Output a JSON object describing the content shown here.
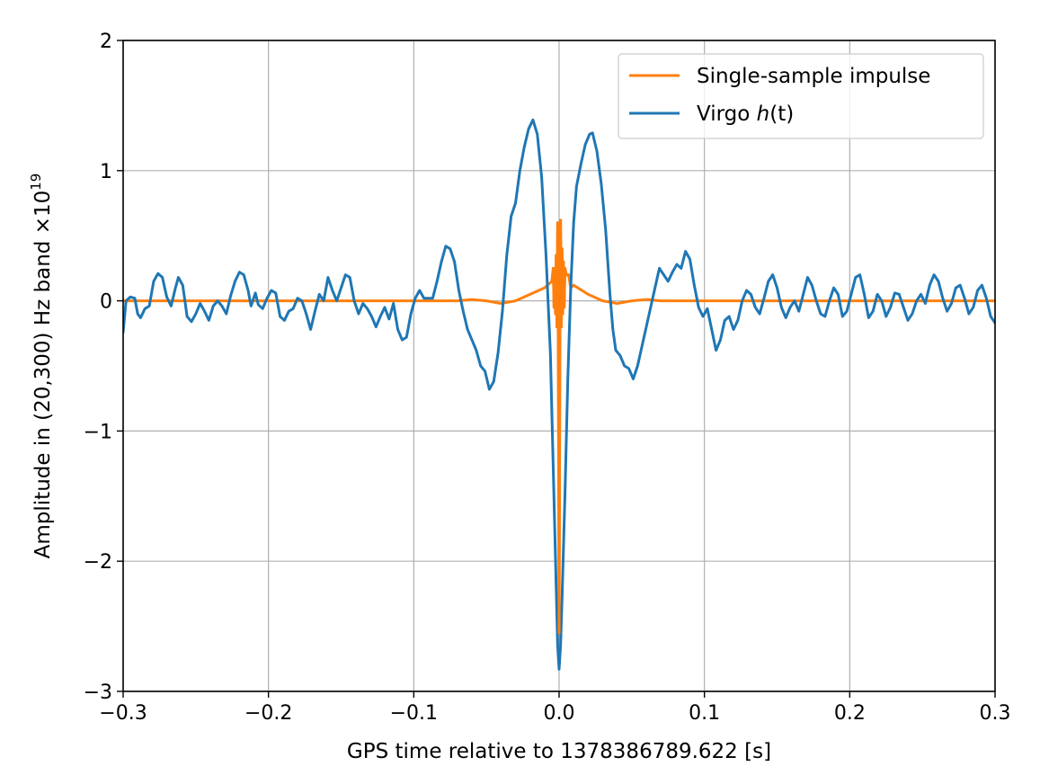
{
  "chart_data": {
    "type": "line",
    "xlabel": "GPS time relative to 1378386789.622 [s]",
    "ylabel": "Amplitude in (20,300) Hz band ×10",
    "ylabel_exponent": "19",
    "xlim": [
      -0.3,
      0.3
    ],
    "ylim": [
      -3,
      2
    ],
    "grid": true,
    "legend_position": "top-right",
    "x_ticks": [
      -0.3,
      -0.2,
      -0.1,
      0.0,
      0.1,
      0.2,
      0.3
    ],
    "x_tick_labels": [
      "−0.3",
      "−0.2",
      "−0.1",
      "0.0",
      "0.1",
      "0.2",
      "0.3"
    ],
    "y_ticks": [
      -3,
      -2,
      -1,
      0,
      1,
      2
    ],
    "y_tick_labels": [
      "−3",
      "−2",
      "−1",
      "0",
      "1",
      "2"
    ],
    "legend": [
      {
        "label": "Single-sample impulse",
        "italic_part": "",
        "suffix": "",
        "color": "#ff7f0e"
      },
      {
        "label": "Virgo ",
        "italic_part": "h",
        "suffix": "(t)",
        "color": "#1f77b4"
      }
    ],
    "series": [
      {
        "name": "Virgo h(t)",
        "color": "#1f77b4",
        "points": [
          [
            -0.3,
            -0.24
          ],
          [
            -0.298,
            0.0
          ],
          [
            -0.295,
            0.03
          ],
          [
            -0.292,
            0.02
          ],
          [
            -0.29,
            -0.1
          ],
          [
            -0.288,
            -0.13
          ],
          [
            -0.285,
            -0.06
          ],
          [
            -0.282,
            -0.04
          ],
          [
            -0.279,
            0.15
          ],
          [
            -0.276,
            0.21
          ],
          [
            -0.273,
            0.18
          ],
          [
            -0.27,
            0.03
          ],
          [
            -0.267,
            -0.04
          ],
          [
            -0.264,
            0.1
          ],
          [
            -0.262,
            0.18
          ],
          [
            -0.259,
            0.12
          ],
          [
            -0.256,
            -0.12
          ],
          [
            -0.253,
            -0.16
          ],
          [
            -0.25,
            -0.1
          ],
          [
            -0.247,
            -0.02
          ],
          [
            -0.244,
            -0.08
          ],
          [
            -0.241,
            -0.15
          ],
          [
            -0.238,
            -0.04
          ],
          [
            -0.235,
            0.0
          ],
          [
            -0.232,
            -0.04
          ],
          [
            -0.229,
            -0.1
          ],
          [
            -0.226,
            0.04
          ],
          [
            -0.223,
            0.15
          ],
          [
            -0.22,
            0.22
          ],
          [
            -0.217,
            0.2
          ],
          [
            -0.214,
            0.08
          ],
          [
            -0.212,
            -0.04
          ],
          [
            -0.209,
            0.06
          ],
          [
            -0.207,
            -0.03
          ],
          [
            -0.204,
            -0.06
          ],
          [
            -0.201,
            0.02
          ],
          [
            -0.198,
            0.08
          ],
          [
            -0.195,
            0.06
          ],
          [
            -0.192,
            -0.12
          ],
          [
            -0.189,
            -0.15
          ],
          [
            -0.186,
            -0.08
          ],
          [
            -0.183,
            -0.06
          ],
          [
            -0.18,
            0.02
          ],
          [
            -0.177,
            0.0
          ],
          [
            -0.174,
            -0.1
          ],
          [
            -0.171,
            -0.22
          ],
          [
            -0.168,
            -0.08
          ],
          [
            -0.165,
            0.05
          ],
          [
            -0.162,
            0.0
          ],
          [
            -0.159,
            0.18
          ],
          [
            -0.156,
            0.08
          ],
          [
            -0.153,
            0.0
          ],
          [
            -0.15,
            0.1
          ],
          [
            -0.147,
            0.2
          ],
          [
            -0.144,
            0.18
          ],
          [
            -0.141,
            0.0
          ],
          [
            -0.138,
            -0.1
          ],
          [
            -0.135,
            -0.02
          ],
          [
            -0.132,
            -0.06
          ],
          [
            -0.129,
            -0.12
          ],
          [
            -0.126,
            -0.2
          ],
          [
            -0.123,
            -0.12
          ],
          [
            -0.12,
            -0.05
          ],
          [
            -0.117,
            -0.14
          ],
          [
            -0.114,
            -0.02
          ],
          [
            -0.111,
            -0.22
          ],
          [
            -0.108,
            -0.3
          ],
          [
            -0.105,
            -0.28
          ],
          [
            -0.102,
            -0.1
          ],
          [
            -0.099,
            0.02
          ],
          [
            -0.096,
            0.08
          ],
          [
            -0.093,
            0.02
          ],
          [
            -0.09,
            0.02
          ],
          [
            -0.087,
            0.02
          ],
          [
            -0.084,
            0.15
          ],
          [
            -0.081,
            0.3
          ],
          [
            -0.078,
            0.42
          ],
          [
            -0.075,
            0.4
          ],
          [
            -0.072,
            0.3
          ],
          [
            -0.069,
            0.08
          ],
          [
            -0.066,
            -0.08
          ],
          [
            -0.063,
            -0.22
          ],
          [
            -0.06,
            -0.3
          ],
          [
            -0.057,
            -0.38
          ],
          [
            -0.054,
            -0.5
          ],
          [
            -0.051,
            -0.54
          ],
          [
            -0.048,
            -0.68
          ],
          [
            -0.045,
            -0.62
          ],
          [
            -0.042,
            -0.4
          ],
          [
            -0.039,
            -0.08
          ],
          [
            -0.036,
            0.35
          ],
          [
            -0.033,
            0.65
          ],
          [
            -0.03,
            0.75
          ],
          [
            -0.027,
            1.0
          ],
          [
            -0.024,
            1.18
          ],
          [
            -0.021,
            1.32
          ],
          [
            -0.018,
            1.39
          ],
          [
            -0.015,
            1.28
          ],
          [
            -0.012,
            0.95
          ],
          [
            -0.009,
            0.35
          ],
          [
            -0.006,
            -0.4
          ],
          [
            -0.004,
            -1.3
          ],
          [
            -0.002,
            -2.2
          ],
          [
            -0.001,
            -2.65
          ],
          [
            0.0,
            -2.83
          ],
          [
            0.001,
            -2.65
          ],
          [
            0.002,
            -2.3
          ],
          [
            0.004,
            -1.5
          ],
          [
            0.006,
            -0.6
          ],
          [
            0.008,
            0.1
          ],
          [
            0.01,
            0.6
          ],
          [
            0.012,
            0.88
          ],
          [
            0.015,
            1.05
          ],
          [
            0.018,
            1.2
          ],
          [
            0.021,
            1.28
          ],
          [
            0.023,
            1.29
          ],
          [
            0.026,
            1.15
          ],
          [
            0.029,
            0.9
          ],
          [
            0.032,
            0.55
          ],
          [
            0.035,
            0.05
          ],
          [
            0.037,
            -0.22
          ],
          [
            0.039,
            -0.38
          ],
          [
            0.042,
            -0.42
          ],
          [
            0.045,
            -0.5
          ],
          [
            0.048,
            -0.52
          ],
          [
            0.051,
            -0.6
          ],
          [
            0.054,
            -0.5
          ],
          [
            0.057,
            -0.35
          ],
          [
            0.06,
            -0.2
          ],
          [
            0.063,
            -0.05
          ],
          [
            0.066,
            0.1
          ],
          [
            0.069,
            0.25
          ],
          [
            0.072,
            0.2
          ],
          [
            0.075,
            0.15
          ],
          [
            0.078,
            0.22
          ],
          [
            0.081,
            0.28
          ],
          [
            0.084,
            0.25
          ],
          [
            0.087,
            0.38
          ],
          [
            0.09,
            0.32
          ],
          [
            0.093,
            0.12
          ],
          [
            0.096,
            -0.05
          ],
          [
            0.099,
            -0.12
          ],
          [
            0.102,
            -0.06
          ],
          [
            0.105,
            -0.22
          ],
          [
            0.108,
            -0.38
          ],
          [
            0.111,
            -0.3
          ],
          [
            0.114,
            -0.15
          ],
          [
            0.117,
            -0.12
          ],
          [
            0.12,
            -0.22
          ],
          [
            0.123,
            -0.15
          ],
          [
            0.126,
            0.0
          ],
          [
            0.129,
            0.08
          ],
          [
            0.132,
            0.05
          ],
          [
            0.135,
            -0.05
          ],
          [
            0.138,
            -0.1
          ],
          [
            0.141,
            0.02
          ],
          [
            0.144,
            0.15
          ],
          [
            0.147,
            0.2
          ],
          [
            0.15,
            0.1
          ],
          [
            0.153,
            -0.05
          ],
          [
            0.156,
            -0.13
          ],
          [
            0.159,
            -0.05
          ],
          [
            0.162,
            0.0
          ],
          [
            0.165,
            -0.08
          ],
          [
            0.168,
            0.05
          ],
          [
            0.171,
            0.18
          ],
          [
            0.174,
            0.12
          ],
          [
            0.177,
            0.0
          ],
          [
            0.18,
            -0.1
          ],
          [
            0.183,
            -0.12
          ],
          [
            0.186,
            0.0
          ],
          [
            0.189,
            0.1
          ],
          [
            0.192,
            0.05
          ],
          [
            0.195,
            -0.12
          ],
          [
            0.198,
            -0.08
          ],
          [
            0.201,
            0.05
          ],
          [
            0.204,
            0.18
          ],
          [
            0.207,
            0.2
          ],
          [
            0.21,
            0.05
          ],
          [
            0.213,
            -0.13
          ],
          [
            0.216,
            -0.08
          ],
          [
            0.219,
            0.05
          ],
          [
            0.222,
            0.0
          ],
          [
            0.225,
            -0.12
          ],
          [
            0.228,
            -0.05
          ],
          [
            0.231,
            0.06
          ],
          [
            0.234,
            0.05
          ],
          [
            0.237,
            -0.05
          ],
          [
            0.24,
            -0.15
          ],
          [
            0.243,
            -0.1
          ],
          [
            0.246,
            0.0
          ],
          [
            0.249,
            0.05
          ],
          [
            0.252,
            -0.02
          ],
          [
            0.255,
            0.12
          ],
          [
            0.258,
            0.2
          ],
          [
            0.261,
            0.15
          ],
          [
            0.264,
            0.02
          ],
          [
            0.267,
            -0.08
          ],
          [
            0.27,
            -0.02
          ],
          [
            0.273,
            0.1
          ],
          [
            0.276,
            0.12
          ],
          [
            0.279,
            0.02
          ],
          [
            0.282,
            -0.1
          ],
          [
            0.285,
            -0.05
          ],
          [
            0.288,
            0.08
          ],
          [
            0.291,
            0.12
          ],
          [
            0.294,
            0.02
          ],
          [
            0.297,
            -0.12
          ],
          [
            0.3,
            -0.17
          ]
        ]
      },
      {
        "name": "Single-sample impulse",
        "color": "#ff7f0e",
        "points": [
          [
            -0.3,
            0.0
          ],
          [
            -0.07,
            0.0
          ],
          [
            -0.06,
            0.01
          ],
          [
            -0.05,
            0.0
          ],
          [
            -0.04,
            -0.02
          ],
          [
            -0.03,
            0.0
          ],
          [
            -0.02,
            0.05
          ],
          [
            -0.01,
            0.1
          ],
          [
            -0.005,
            0.15
          ],
          [
            -0.004,
            0.25
          ],
          [
            -0.0035,
            -0.05
          ],
          [
            -0.003,
            0.25
          ],
          [
            -0.0025,
            -0.1
          ],
          [
            -0.002,
            0.35
          ],
          [
            -0.0015,
            -0.2
          ],
          [
            -0.001,
            0.6
          ],
          [
            -0.0005,
            -0.5
          ],
          [
            0.0,
            -2.55
          ],
          [
            0.0005,
            -0.5
          ],
          [
            0.001,
            0.62
          ],
          [
            0.0015,
            -0.2
          ],
          [
            0.002,
            0.4
          ],
          [
            0.0025,
            -0.1
          ],
          [
            0.003,
            0.3
          ],
          [
            0.0035,
            -0.05
          ],
          [
            0.004,
            0.25
          ],
          [
            0.005,
            0.2
          ],
          [
            0.0065,
            0.2
          ],
          [
            0.008,
            0.1
          ],
          [
            0.01,
            0.12
          ],
          [
            0.02,
            0.05
          ],
          [
            0.03,
            0.0
          ],
          [
            0.04,
            -0.02
          ],
          [
            0.05,
            0.0
          ],
          [
            0.06,
            0.01
          ],
          [
            0.07,
            0.0
          ],
          [
            0.3,
            0.0
          ]
        ]
      }
    ]
  }
}
